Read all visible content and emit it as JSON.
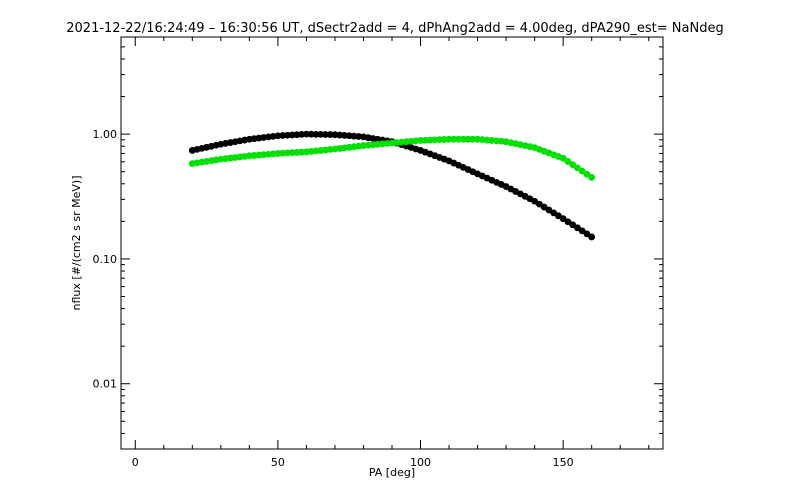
{
  "chart_data": {
    "type": "scatter",
    "title": "2021-12-22/16:24:49 – 16:30:56 UT, dSectr2add = 4, dPhAng2add = 4.00deg, dPA290_est=    NaNdeg",
    "xlabel": "PA [deg]",
    "ylabel": "nflux [#/(cm2 s sr MeV)]",
    "xlim": [
      -5,
      185
    ],
    "ylim": [
      0.003,
      6.0
    ],
    "yscale": "log",
    "x_ticks": [
      0,
      50,
      100,
      150
    ],
    "x_tick_labels": [
      "0",
      "50",
      "100",
      "150"
    ],
    "y_ticks": [
      0.01,
      0.1,
      1.0
    ],
    "y_tick_labels": [
      "0.01",
      "0.10",
      "1.00"
    ],
    "grid": false,
    "legend": "none",
    "series": [
      {
        "color": "#000000",
        "x": [
          20,
          30,
          40,
          50,
          60,
          70,
          80,
          90,
          100,
          110,
          120,
          130,
          140,
          150,
          160
        ],
        "y": [
          0.74,
          0.83,
          0.91,
          0.97,
          1.0,
          0.99,
          0.95,
          0.87,
          0.74,
          0.61,
          0.48,
          0.38,
          0.29,
          0.21,
          0.15
        ]
      },
      {
        "color": "#00e000",
        "x": [
          20,
          30,
          40,
          50,
          60,
          70,
          80,
          90,
          100,
          110,
          120,
          130,
          140,
          150,
          160
        ],
        "y": [
          0.58,
          0.63,
          0.67,
          0.7,
          0.72,
          0.76,
          0.81,
          0.85,
          0.89,
          0.91,
          0.91,
          0.87,
          0.78,
          0.64,
          0.45
        ]
      }
    ]
  }
}
